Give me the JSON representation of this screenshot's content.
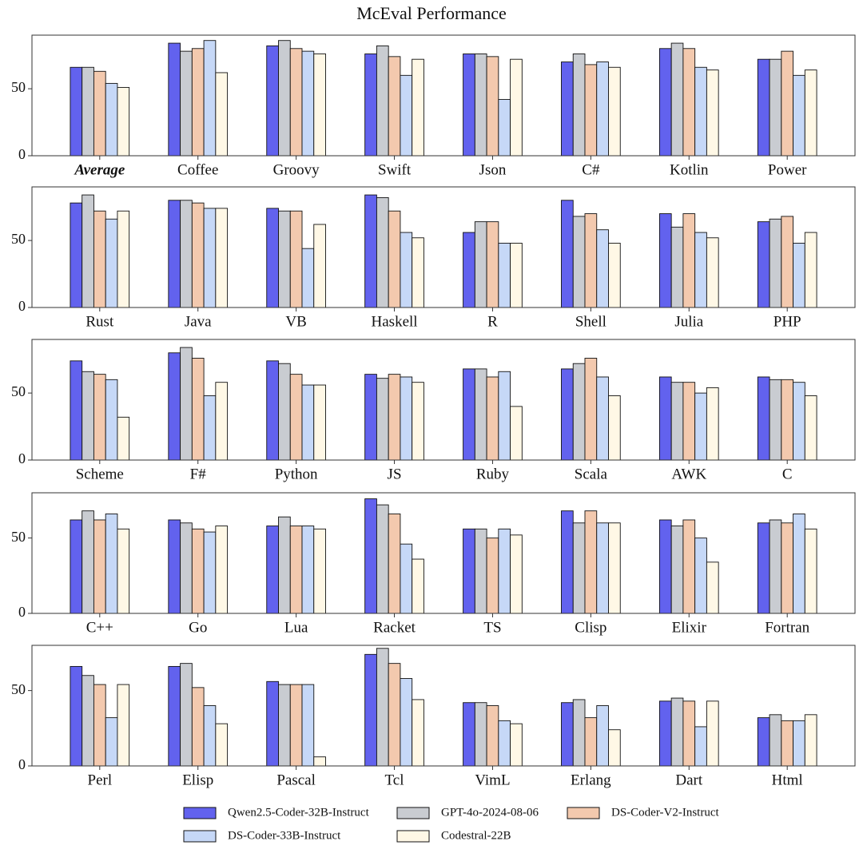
{
  "chart_data": [
    {
      "type": "bar",
      "title": "McEval Performance",
      "categories": [
        "Average",
        "Coffee",
        "Groovy",
        "Swift",
        "Json",
        "C#",
        "Kotlin",
        "Power"
      ],
      "ylim": [
        0,
        90
      ],
      "yticks": [
        0,
        50
      ],
      "series": [
        {
          "name": "Qwen2.5-Coder-32B-Instruct",
          "color": "#6262ee",
          "values": [
            66,
            84,
            82,
            76,
            76,
            70,
            80,
            72
          ]
        },
        {
          "name": "GPT-4o-2024-08-06",
          "color": "#c9ccd1",
          "values": [
            66,
            78,
            86,
            82,
            76,
            76,
            84,
            72
          ]
        },
        {
          "name": "DS-Coder-V2-Instruct",
          "color": "#f3c9ae",
          "values": [
            63,
            80,
            80,
            74,
            74,
            68,
            80,
            78
          ]
        },
        {
          "name": "DS-Coder-33B-Instruct",
          "color": "#c6d8f7",
          "values": [
            54,
            86,
            78,
            60,
            42,
            70,
            66,
            60
          ]
        },
        {
          "name": "Codestral-22B",
          "color": "#fff8e6",
          "values": [
            51,
            62,
            76,
            72,
            72,
            66,
            64,
            64
          ]
        }
      ]
    },
    {
      "type": "bar",
      "categories": [
        "Rust",
        "Java",
        "VB",
        "Haskell",
        "R",
        "Shell",
        "Julia",
        "PHP"
      ],
      "ylim": [
        0,
        90
      ],
      "yticks": [
        0,
        50
      ],
      "series": [
        {
          "name": "Qwen2.5-Coder-32B-Instruct",
          "color": "#6262ee",
          "values": [
            78,
            80,
            74,
            84,
            56,
            80,
            70,
            64
          ]
        },
        {
          "name": "GPT-4o-2024-08-06",
          "color": "#c9ccd1",
          "values": [
            84,
            80,
            72,
            82,
            64,
            68,
            60,
            66
          ]
        },
        {
          "name": "DS-Coder-V2-Instruct",
          "color": "#f3c9ae",
          "values": [
            72,
            78,
            72,
            72,
            64,
            70,
            70,
            68
          ]
        },
        {
          "name": "DS-Coder-33B-Instruct",
          "color": "#c6d8f7",
          "values": [
            66,
            74,
            44,
            56,
            48,
            58,
            56,
            48
          ]
        },
        {
          "name": "Codestral-22B",
          "color": "#fff8e6",
          "values": [
            72,
            74,
            62,
            52,
            48,
            48,
            52,
            56
          ]
        }
      ]
    },
    {
      "type": "bar",
      "categories": [
        "Scheme",
        "F#",
        "Python",
        "JS",
        "Ruby",
        "Scala",
        "AWK",
        "C"
      ],
      "ylim": [
        0,
        90
      ],
      "yticks": [
        0,
        50
      ],
      "series": [
        {
          "name": "Qwen2.5-Coder-32B-Instruct",
          "color": "#6262ee",
          "values": [
            74,
            80,
            74,
            64,
            68,
            68,
            62,
            62
          ]
        },
        {
          "name": "GPT-4o-2024-08-06",
          "color": "#c9ccd1",
          "values": [
            66,
            84,
            72,
            61,
            68,
            72,
            58,
            60
          ]
        },
        {
          "name": "DS-Coder-V2-Instruct",
          "color": "#f3c9ae",
          "values": [
            64,
            76,
            64,
            64,
            62,
            76,
            58,
            60
          ]
        },
        {
          "name": "DS-Coder-33B-Instruct",
          "color": "#c6d8f7",
          "values": [
            60,
            48,
            56,
            62,
            66,
            62,
            50,
            58
          ]
        },
        {
          "name": "Codestral-22B",
          "color": "#fff8e6",
          "values": [
            32,
            58,
            56,
            58,
            40,
            48,
            54,
            48
          ]
        }
      ]
    },
    {
      "type": "bar",
      "categories": [
        "C++",
        "Go",
        "Lua",
        "Racket",
        "TS",
        "Clisp",
        "Elixir",
        "Fortran"
      ],
      "ylim": [
        0,
        80
      ],
      "yticks": [
        0,
        50
      ],
      "series": [
        {
          "name": "Qwen2.5-Coder-32B-Instruct",
          "color": "#6262ee",
          "values": [
            62,
            62,
            58,
            76,
            56,
            68,
            62,
            60
          ]
        },
        {
          "name": "GPT-4o-2024-08-06",
          "color": "#c9ccd1",
          "values": [
            68,
            60,
            64,
            72,
            56,
            60,
            58,
            62
          ]
        },
        {
          "name": "DS-Coder-V2-Instruct",
          "color": "#f3c9ae",
          "values": [
            62,
            56,
            58,
            66,
            50,
            68,
            62,
            60
          ]
        },
        {
          "name": "DS-Coder-33B-Instruct",
          "color": "#c6d8f7",
          "values": [
            66,
            54,
            58,
            46,
            56,
            60,
            50,
            66
          ]
        },
        {
          "name": "Codestral-22B",
          "color": "#fff8e6",
          "values": [
            56,
            58,
            56,
            36,
            52,
            60,
            34,
            56
          ]
        }
      ]
    },
    {
      "type": "bar",
      "categories": [
        "Perl",
        "Elisp",
        "Pascal",
        "Tcl",
        "VimL",
        "Erlang",
        "Dart",
        "Html"
      ],
      "ylim": [
        0,
        80
      ],
      "yticks": [
        0,
        50
      ],
      "series": [
        {
          "name": "Qwen2.5-Coder-32B-Instruct",
          "color": "#6262ee",
          "values": [
            66,
            66,
            56,
            74,
            42,
            42,
            43,
            32
          ]
        },
        {
          "name": "GPT-4o-2024-08-06",
          "color": "#c9ccd1",
          "values": [
            60,
            68,
            54,
            78,
            42,
            44,
            45,
            34
          ]
        },
        {
          "name": "DS-Coder-V2-Instruct",
          "color": "#f3c9ae",
          "values": [
            54,
            52,
            54,
            68,
            40,
            32,
            43,
            30
          ]
        },
        {
          "name": "DS-Coder-33B-Instruct",
          "color": "#c6d8f7",
          "values": [
            32,
            40,
            54,
            58,
            30,
            40,
            26,
            30
          ]
        },
        {
          "name": "Codestral-22B",
          "color": "#fff8e6",
          "values": [
            54,
            28,
            6,
            44,
            28,
            24,
            43,
            34
          ]
        }
      ]
    }
  ]
}
